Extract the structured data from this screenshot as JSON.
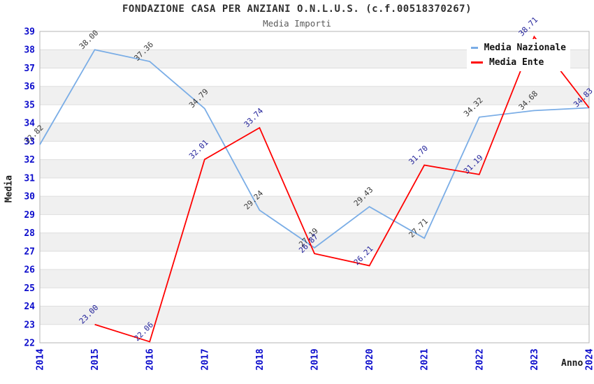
{
  "header": {
    "title": "FONDAZIONE CASA PER ANZIANI O.N.L.U.S. (c.f.00518370267)",
    "subtitle": "Media Importi"
  },
  "legend": {
    "items": [
      {
        "label": "Media Nazionale",
        "series_index": 0
      },
      {
        "label": "Media Ente",
        "series_index": 1
      }
    ]
  },
  "colors": {
    "axis_tick_label": "#0c0ccc",
    "band_gray": "#f0f0f0",
    "band_white": "#ffffff",
    "gridline": "#dedede",
    "plot_border": "#b4b4b4"
  },
  "chart_data": {
    "type": "line",
    "title": "FONDAZIONE CASA PER ANZIANI O.N.L.U.S. (c.f.00518370267)",
    "subtitle": "Media Importi",
    "xlabel": "Anno",
    "ylabel": "Media",
    "x": [
      2014,
      2015,
      2016,
      2017,
      2018,
      2019,
      2020,
      2021,
      2022,
      2023,
      2024
    ],
    "x_tick_labels": [
      "2014",
      "2015",
      "2016",
      "2017",
      "2018",
      "2019",
      "2020",
      "2021",
      "2022",
      "2023",
      "2024"
    ],
    "ylim": [
      22,
      39
    ],
    "y_ticks": [
      22,
      23,
      24,
      25,
      26,
      27,
      28,
      29,
      30,
      31,
      32,
      33,
      34,
      35,
      36,
      37,
      38,
      39
    ],
    "grid": "horizontal-bands",
    "legend_position": "top-right",
    "series": [
      {
        "name": "Media Nazionale",
        "color": "#7aade6",
        "label_color": "#3a3a3a",
        "values": [
          32.82,
          38.0,
          37.36,
          34.79,
          29.24,
          27.19,
          29.43,
          27.71,
          34.32,
          34.68,
          34.83
        ],
        "point_labels": [
          "32.82",
          "38.00",
          "37.36",
          "34.79",
          "29.24",
          "27.19",
          "29.43",
          "27.71",
          "34.32",
          "34.68",
          ""
        ]
      },
      {
        "name": "Media Ente",
        "color": "#ff0000",
        "label_color": "#22229a",
        "values": [
          null,
          23.0,
          22.06,
          32.01,
          33.74,
          26.87,
          26.21,
          31.7,
          31.19,
          38.71,
          34.83
        ],
        "point_labels": [
          "",
          "23.00",
          "22.06",
          "32.01",
          "33.74",
          "26.87",
          "26.21",
          "31.70",
          "31.19",
          "38.71",
          "34.83"
        ]
      }
    ]
  }
}
